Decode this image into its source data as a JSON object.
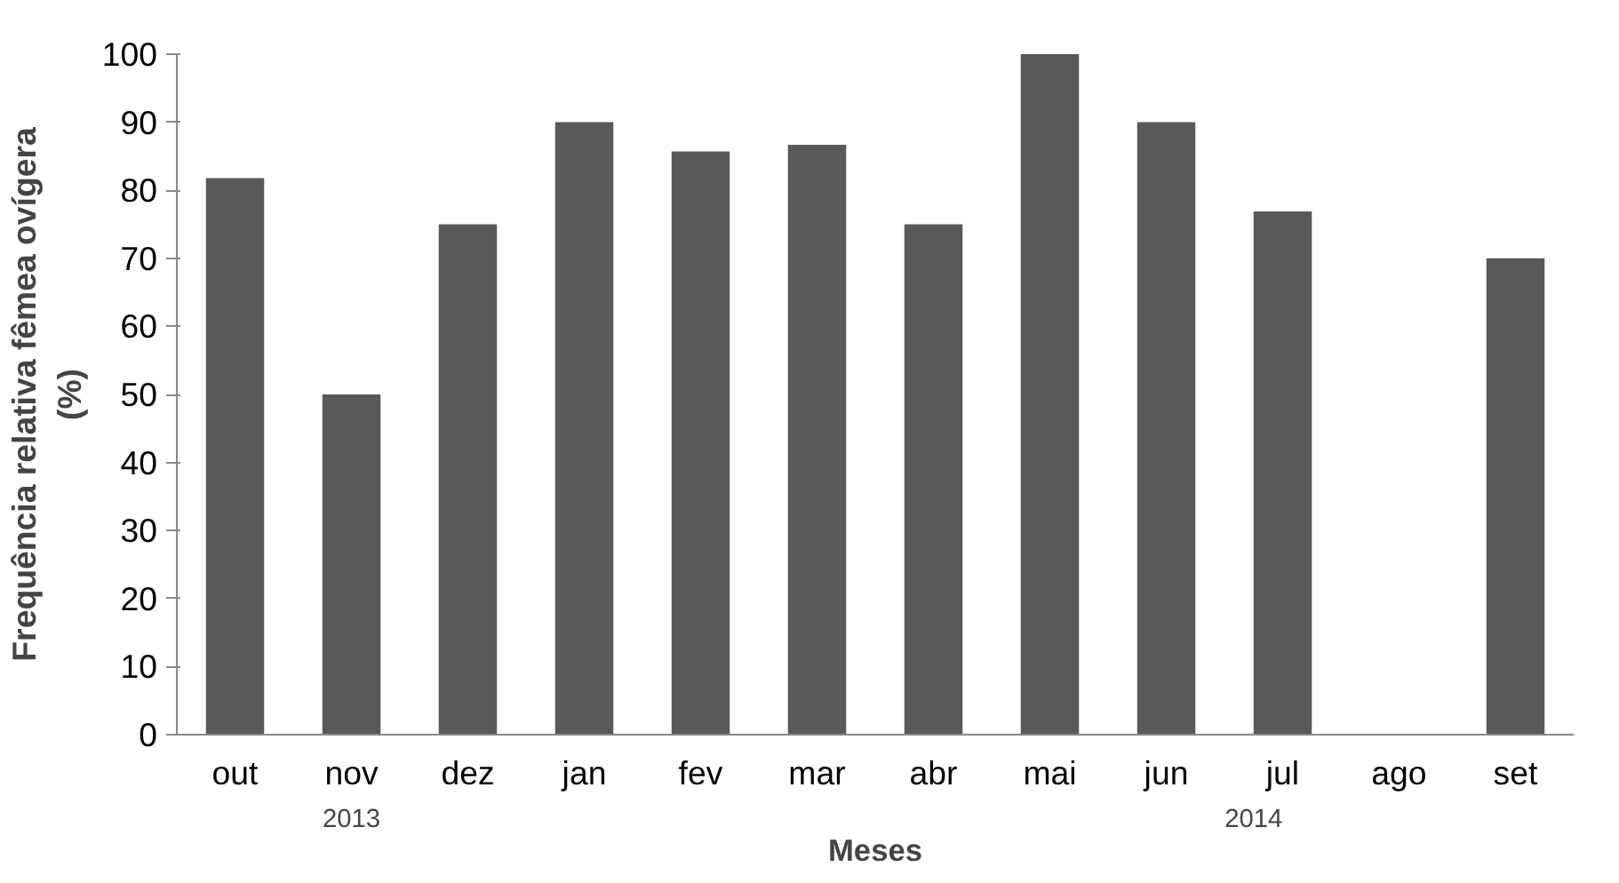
{
  "chart_data": {
    "type": "bar",
    "xlabel": "Meses",
    "ylabel": "Frequência relativa fêmea ovígera\n(%)",
    "categories": [
      "out",
      "nov",
      "dez",
      "jan",
      "fev",
      "mar",
      "abr",
      "mai",
      "jun",
      "jul",
      "ago",
      "set"
    ],
    "values": [
      81.8,
      50,
      75,
      90,
      85.7,
      86.7,
      75,
      100,
      90,
      76.9,
      0,
      70
    ],
    "color": "#595959",
    "ylim": [
      0,
      100
    ],
    "yticks": [
      0,
      10,
      20,
      30,
      40,
      50,
      60,
      70,
      80,
      90,
      100
    ],
    "grid": false,
    "annotations": [
      "2013",
      "2014"
    ]
  }
}
